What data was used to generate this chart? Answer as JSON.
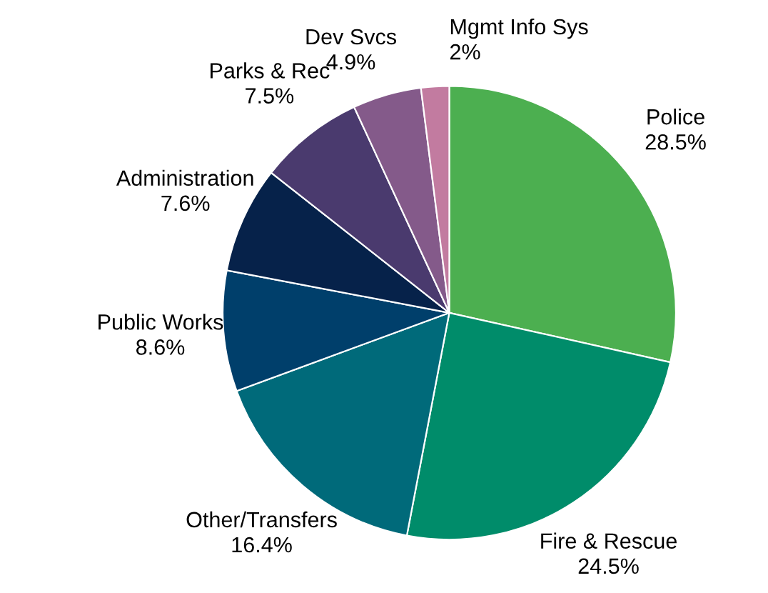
{
  "chart_data": {
    "type": "pie",
    "categories": [
      "Police",
      "Fire & Rescue",
      "Other/Transfers",
      "Public Works",
      "Administration",
      "Parks & Rec",
      "Dev Svcs",
      "Mgmt Info Sys"
    ],
    "values": [
      28.5,
      24.5,
      16.4,
      8.6,
      7.6,
      7.5,
      4.9,
      2
    ],
    "value_labels": [
      "28.5%",
      "24.5%",
      "16.4%",
      "8.6%",
      "7.6%",
      "7.5%",
      "4.9%",
      "2%"
    ],
    "colors": [
      "#4caf50",
      "#008c6a",
      "#006a7a",
      "#003f6b",
      "#06224a",
      "#4a3a6e",
      "#845a8a",
      "#c27ba0"
    ],
    "legend": false
  }
}
